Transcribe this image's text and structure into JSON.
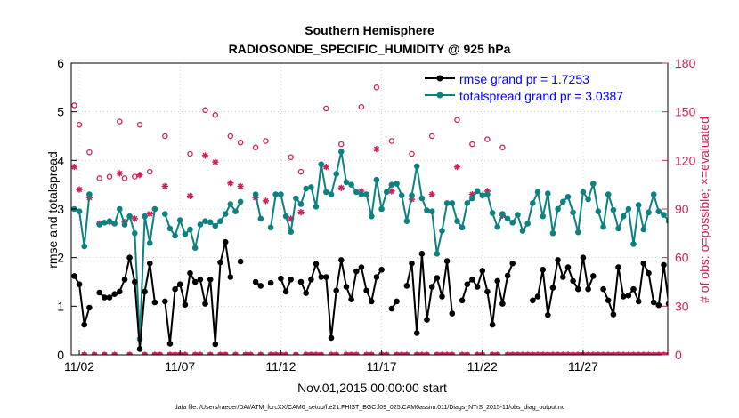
{
  "chart_data": {
    "type": "line",
    "title": "Southern Hemisphere",
    "subtitle": "RADIOSONDE_SPECIFIC_HUMIDITY @ 925 hPa",
    "xlabel": "Nov.01,2015 00:00:00 start",
    "ylabel_left": "rmse and totalspread",
    "ylabel_right": "# of obs: o=possible; ×=evaluated",
    "footer": "data file: /Users/raeder/DAI/ATM_forcXX/CAM6_setup/f.e21.FHIST_BGC.f09_025.CAM6assim.011/Diags_NTrS_2015-11/obs_diag_output.nc",
    "xlim": [
      1.6,
      31.2
    ],
    "x_ticks": [
      2,
      7,
      12,
      17,
      22,
      27
    ],
    "x_tick_labels": [
      "11/02",
      "11/07",
      "11/12",
      "11/17",
      "11/22",
      "11/27"
    ],
    "ylim_left": [
      0,
      6
    ],
    "yticks_left": [
      "0",
      "1",
      "2",
      "3",
      "4",
      "5",
      "6"
    ],
    "ylim_right": [
      0,
      180
    ],
    "yticks_right": [
      "0",
      "30",
      "60",
      "90",
      "120",
      "150",
      "180"
    ],
    "x_interval_days": 0.25,
    "colors": {
      "rmse": "#000000",
      "totalspread": "#0d8080",
      "obs": "#d0205a",
      "legend_text": "#0000ff",
      "axis": "#000000",
      "right_axis": "#d0205a",
      "grid": "#bbbbbb"
    },
    "legend": {
      "location": "top-right",
      "entries": [
        "rmse grand pr = 1.7253",
        "totalspread grand pr = 3.0387"
      ]
    },
    "series": [
      {
        "name": "rmse",
        "axis": "left",
        "x_start": 1.75,
        "values": [
          1.62,
          1.45,
          0.62,
          0.97,
          null,
          1.28,
          1.18,
          1.18,
          1.25,
          1.3,
          1.55,
          2.0,
          1.5,
          0.12,
          1.3,
          1.88,
          1.08,
          null,
          1.1,
          0.23,
          1.35,
          1.45,
          1.03,
          1.68,
          1.5,
          1.55,
          1.05,
          1.55,
          0.22,
          1.9,
          2.32,
          1.6,
          null,
          1.92,
          null,
          null,
          1.5,
          1.42,
          null,
          1.48,
          null,
          1.57,
          1.3,
          1.55,
          null,
          1.5,
          1.27,
          1.55,
          1.87,
          1.6,
          1.6,
          0.35,
          1.32,
          1.95,
          1.4,
          1.14,
          1.72,
          1.8,
          1.32,
          1.1,
          1.6,
          1.75,
          null,
          0.95,
          1.1,
          null,
          1.42,
          1.88,
          0.45,
          2.08,
          0.72,
          1.4,
          1.58,
          1.2,
          1.93,
          0.85,
          null,
          1.12,
          1.45,
          1.55,
          1.4,
          1.73,
          1.3,
          0.62,
          1.52,
          1.05,
          1.63,
          1.88,
          null,
          null,
          null,
          1.12,
          1.2,
          1.75,
          0.82,
          1.38,
          1.95,
          1.6,
          1.8,
          1.52,
          1.35,
          2.0,
          1.35,
          1.62,
          null,
          1.35,
          1.12,
          0.83,
          1.8,
          1.2,
          1.22,
          1.35,
          1.1,
          1.88,
          1.68,
          1.08,
          1.02,
          1.85,
          1.05,
          1.44,
          null,
          1.38
        ]
      },
      {
        "name": "totalspread",
        "axis": "left",
        "x_start": 1.75,
        "values": [
          3.0,
          2.95,
          2.23,
          3.3,
          null,
          2.68,
          2.72,
          2.75,
          2.7,
          3.0,
          2.68,
          2.85,
          2.5,
          0.33,
          2.85,
          2.3,
          3.0,
          null,
          2.9,
          2.6,
          2.45,
          2.77,
          2.48,
          2.58,
          2.2,
          2.68,
          2.75,
          2.73,
          2.65,
          2.75,
          2.9,
          3.1,
          2.95,
          3.15,
          null,
          null,
          3.3,
          2.8,
          null,
          2.62,
          3.3,
          3.3,
          2.85,
          2.53,
          3.22,
          3.1,
          3.42,
          3.45,
          3.05,
          3.92,
          3.35,
          3.3,
          3.72,
          4.18,
          3.55,
          3.5,
          3.35,
          3.3,
          3.3,
          2.85,
          3.6,
          3.0,
          3.35,
          3.5,
          3.52,
          3.28,
          2.75,
          3.28,
          3.88,
          3.22,
          2.97,
          2.95,
          2.08,
          2.55,
          3.12,
          3.12,
          2.75,
          2.62,
          3.12,
          3.22,
          3.37,
          3.28,
          3.3,
          2.92,
          2.63,
          2.9,
          2.8,
          2.72,
          2.88,
          2.55,
          2.7,
          3.12,
          3.35,
          2.85,
          3.32,
          2.5,
          3.0,
          3.15,
          3.25,
          2.93,
          2.52,
          3.35,
          3.2,
          3.52,
          2.95,
          2.63,
          3.3,
          2.98,
          2.6,
          2.85,
          3.0,
          2.28,
          3.08,
          2.58,
          2.93,
          3.3,
          2.95,
          2.88,
          2.75,
          3.28,
          null,
          3.05
        ]
      },
      {
        "name": "obs possible",
        "axis": "right",
        "marker": "circle",
        "x_start": 1.75,
        "values": [
          154,
          142,
          0,
          125,
          0,
          109,
          0,
          110,
          0,
          144,
          109,
          0,
          110,
          142,
          0,
          113,
          0,
          0,
          135,
          0,
          0,
          0,
          0,
          124,
          0,
          0,
          151,
          0,
          148,
          0,
          0,
          135,
          0,
          131,
          0,
          0,
          128,
          0,
          132,
          0,
          0,
          0,
          0,
          122,
          0,
          113,
          0,
          0,
          0,
          0,
          152,
          0,
          0,
          130,
          0,
          0,
          0,
          153,
          0,
          0,
          165,
          0,
          0,
          132,
          0,
          0,
          0,
          124,
          0,
          0,
          0,
          135,
          0,
          0,
          0,
          0,
          145,
          0,
          0,
          130,
          0,
          0,
          133,
          0,
          0,
          128,
          0,
          0,
          0,
          0,
          0,
          0,
          0,
          0,
          0,
          0,
          0,
          0,
          0,
          0,
          0,
          0,
          0,
          0,
          0,
          0,
          0,
          0,
          0,
          0,
          0,
          0,
          0,
          0,
          0,
          0,
          0,
          0,
          0,
          0,
          0,
          0
        ]
      },
      {
        "name": "obs evaluated",
        "axis": "right",
        "marker": "asterisk",
        "x_start": 1.75,
        "values": [
          116,
          102,
          0,
          97,
          0,
          81,
          0,
          82,
          0,
          112,
          82,
          0,
          84,
          111,
          0,
          87,
          0,
          0,
          104,
          0,
          0,
          0,
          0,
          98,
          0,
          0,
          123,
          0,
          119,
          0,
          0,
          106,
          0,
          104,
          0,
          0,
          97,
          0,
          95,
          0,
          0,
          0,
          0,
          84,
          0,
          88,
          0,
          0,
          0,
          0,
          116,
          0,
          0,
          103,
          0,
          0,
          0,
          101,
          0,
          0,
          127,
          0,
          0,
          101,
          0,
          0,
          0,
          96,
          0,
          0,
          0,
          99,
          0,
          0,
          0,
          0,
          116,
          0,
          0,
          99,
          0,
          0,
          101,
          0,
          0,
          86,
          0,
          0,
          0,
          0,
          0,
          0,
          0,
          0,
          0,
          0,
          0,
          0,
          0,
          0,
          0,
          0,
          0,
          0,
          0,
          0,
          0,
          0,
          0,
          0,
          0,
          0,
          0,
          0,
          0,
          0,
          0,
          0,
          0,
          0,
          0,
          0
        ]
      }
    ]
  }
}
